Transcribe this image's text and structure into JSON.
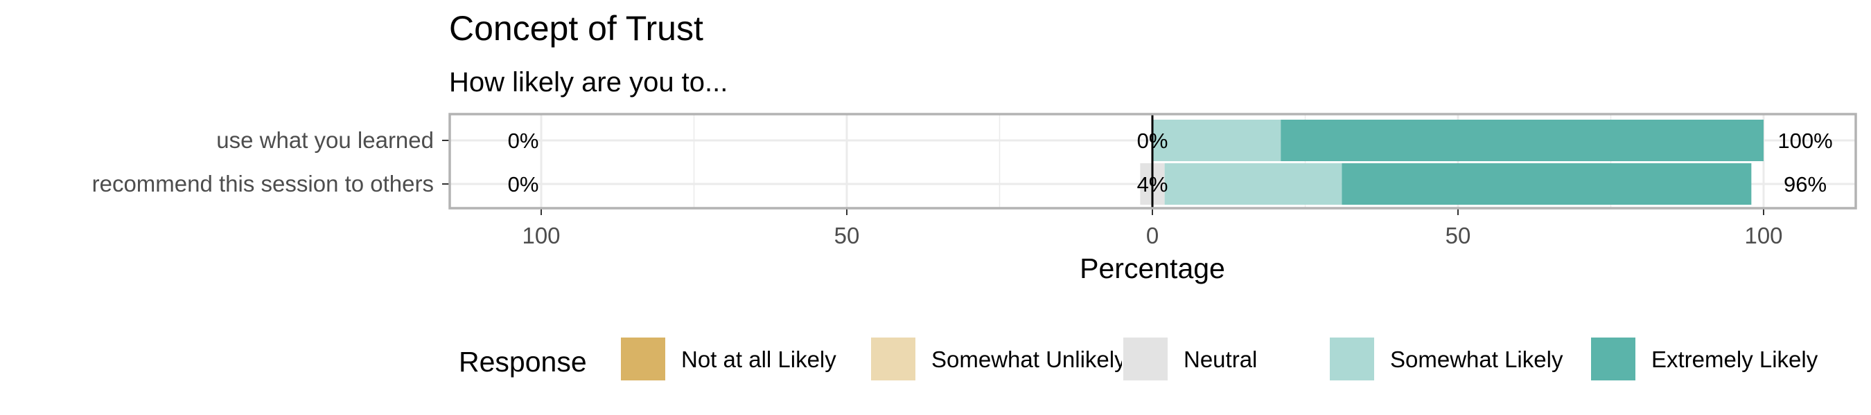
{
  "chart_data": {
    "type": "bar",
    "orientation": "horizontal",
    "stacking": "diverging",
    "title": "Concept of Trust",
    "subtitle": "How likely are you to...",
    "xlabel": "Percentage",
    "xlim": [
      -100,
      100
    ],
    "x_ticks": [
      {
        "value": -100,
        "label": "100"
      },
      {
        "value": -50,
        "label": "50"
      },
      {
        "value": 0,
        "label": "0"
      },
      {
        "value": 50,
        "label": "50"
      },
      {
        "value": 100,
        "label": "100"
      }
    ],
    "categories": [
      "use what you learned",
      "recommend this session to others"
    ],
    "series": [
      {
        "name": "Not at all Likely",
        "color": "#d9b365",
        "values": [
          0,
          0
        ]
      },
      {
        "name": "Somewhat Unlikely",
        "color": "#ecd9b0",
        "values": [
          0,
          0
        ]
      },
      {
        "name": "Neutral",
        "color": "#e3e3e3",
        "values": [
          0,
          4
        ]
      },
      {
        "name": "Somewhat Likely",
        "color": "#acd9d4",
        "values": [
          21,
          29
        ]
      },
      {
        "name": "Extremely Likely",
        "color": "#5bb4aa",
        "values": [
          79,
          67
        ]
      }
    ],
    "labels_negative": [
      "0%",
      "0%"
    ],
    "labels_neutral": [
      "0%",
      "4%"
    ],
    "labels_positive": [
      "100%",
      "96%"
    ],
    "legend": {
      "title": "Response",
      "position": "bottom"
    },
    "grid": true
  }
}
